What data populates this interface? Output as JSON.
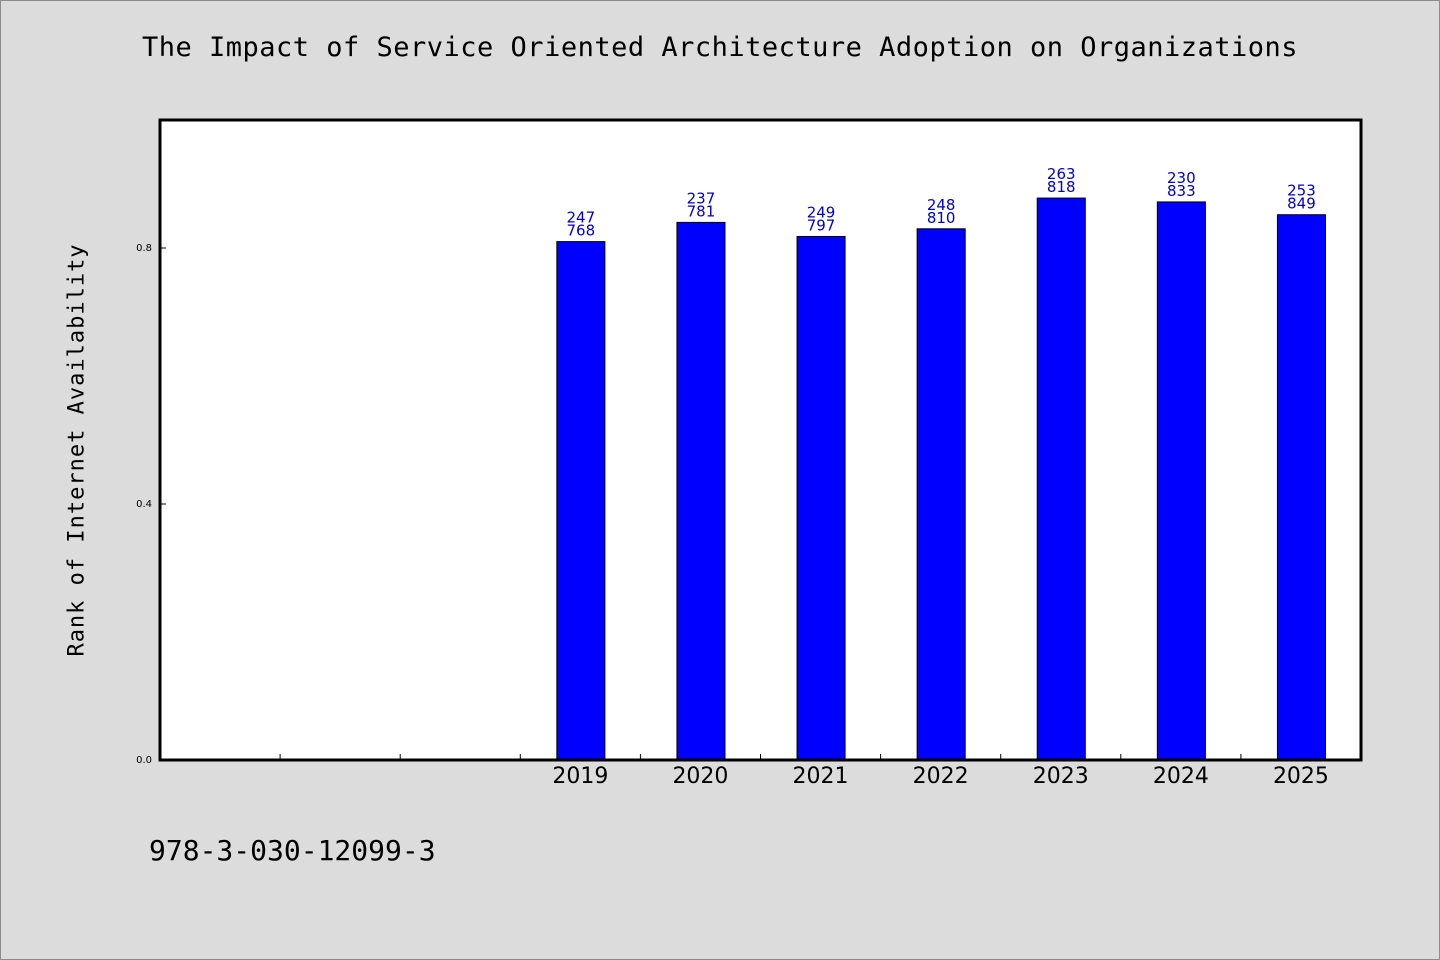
{
  "chart_data": {
    "type": "bar",
    "title": "The Impact of Service Oriented Architecture Adoption on Organizations",
    "xlabel": "",
    "ylabel": "Rank of Internet Availability",
    "categories": [
      "",
      "",
      "",
      "2019",
      "2020",
      "2021",
      "2022",
      "2023",
      "2024",
      "2025"
    ],
    "values": [
      null,
      null,
      null,
      0.81,
      0.84,
      0.818,
      0.83,
      0.878,
      0.872,
      0.852
    ],
    "bar_labels": [
      [
        "",
        ""
      ],
      [
        "",
        ""
      ],
      [
        "",
        ""
      ],
      [
        "247",
        "768"
      ],
      [
        "237",
        "781"
      ],
      [
        "249",
        "797"
      ],
      [
        "248",
        "810"
      ],
      [
        "263",
        "818"
      ],
      [
        "230",
        "833"
      ],
      [
        "253",
        "849"
      ]
    ],
    "ylim": [
      0,
      1.0
    ],
    "yticks": [
      0.0,
      0.4,
      0.8
    ],
    "ytick_labels": [
      "0.0",
      "0.4",
      "0.8"
    ],
    "grid": false,
    "legend": "none"
  },
  "footnote": "978-3-030-12099-3",
  "colors": {
    "bar_fill": "#0000ff",
    "bar_label": "#0000cc",
    "background": "#dcdcdc",
    "plot_background": "#ffffff"
  }
}
